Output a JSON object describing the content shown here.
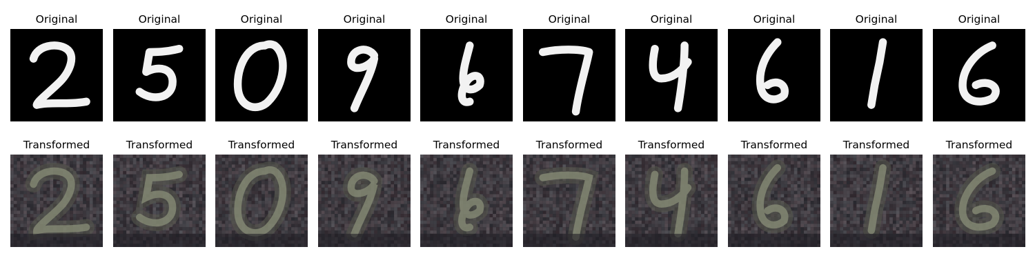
{
  "figure": {
    "rows": [
      {
        "row_title": "Original",
        "style": "mnist",
        "digits": [
          "2",
          "5",
          "0",
          "9",
          "6",
          "7",
          "4",
          "6",
          "1",
          "6"
        ]
      },
      {
        "row_title": "Transformed",
        "style": "svhn",
        "digits": [
          "2",
          "5",
          "0",
          "9",
          "6",
          "7",
          "4",
          "6",
          "1",
          "6"
        ]
      }
    ],
    "colors": {
      "mnist_background": "#000000",
      "mnist_stroke": "#f2f2f2",
      "svhn_background": "#2b2a30",
      "svhn_stroke": "#8a8f78"
    }
  }
}
